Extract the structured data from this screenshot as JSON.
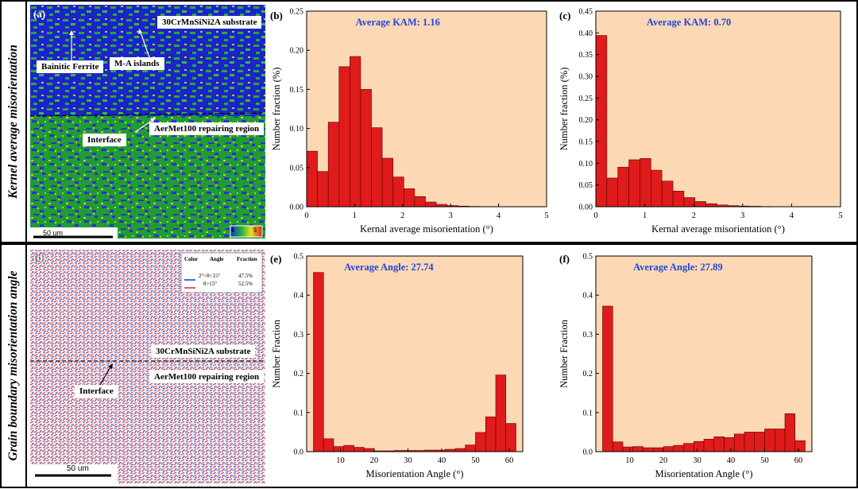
{
  "row_labels": {
    "top": "Kernel average misorientation",
    "bottom": "Grain boundary misorientation angle"
  },
  "panel_labels": {
    "a": "(a)",
    "b": "(b)",
    "c": "(c)",
    "d": "(d)",
    "e": "(e)",
    "f": "(f)"
  },
  "map_a": {
    "substrate": "30CrMnSiNi2A substrate",
    "bainitic": "Bainitic Ferrite",
    "ma": "M-A islands",
    "interface": "Interface",
    "repair": "AerMet100 repairing region",
    "scale": "50 um",
    "legend_min": "0",
    "legend_max": "5"
  },
  "map_d": {
    "legend_headers": [
      "Color",
      "Angle",
      "Fraction"
    ],
    "legend_rows": [
      {
        "angle": "2°<θ<15°",
        "fraction": "47.5%",
        "color": "#2233cc"
      },
      {
        "angle": "θ>15°",
        "fraction": "52.5%",
        "color": "#dd2222"
      }
    ],
    "substrate": "30CrMnSiNi2A substrate",
    "repair": "AerMet100 repairing region",
    "interface": "Interface",
    "scale": "50 um"
  },
  "colors": {
    "bar": "#e01b1b",
    "bar_edge": "#5a0000",
    "bg": "#fcd9b4",
    "annot": "#2244dd"
  },
  "chart_data": [
    {
      "id": "b",
      "type": "bar",
      "annotation": "Average KAM: 1.16",
      "xlabel": "Kernal average misorientation (°)",
      "ylabel": "Number fraction (%)",
      "xlim": [
        0,
        5
      ],
      "ylim": [
        0,
        0.25
      ],
      "xticks": [
        0,
        1,
        2,
        3,
        4,
        5
      ],
      "xtick_labels": [
        "0",
        "1",
        "2",
        "3",
        "4",
        "5"
      ],
      "yticks": [
        0,
        0.05,
        0.1,
        0.15,
        0.2,
        0.25
      ],
      "ytick_labels": [
        "0.00",
        "0.05",
        "0.10",
        "0.15",
        "0.20",
        "0.25"
      ],
      "bin_width": 0.225,
      "x": [
        0.1125,
        0.3375,
        0.5625,
        0.7875,
        1.0125,
        1.2375,
        1.4625,
        1.6875,
        1.9125,
        2.1375,
        2.3625,
        2.5875,
        2.8125,
        3.0375,
        3.2625,
        3.4875,
        3.7125,
        3.9375,
        4.1625,
        4.3875,
        4.6125,
        4.8375
      ],
      "values": [
        0.071,
        0.045,
        0.108,
        0.179,
        0.192,
        0.15,
        0.101,
        0.062,
        0.038,
        0.023,
        0.013,
        0.006,
        0.003,
        0.0015,
        0.0008,
        0.0004,
        0.0002,
        0.0001,
        0.0001,
        0,
        0,
        0
      ]
    },
    {
      "id": "c",
      "type": "bar",
      "annotation": "Average KAM: 0.70",
      "xlabel": "Kernal average misorientation (°)",
      "ylabel": "Number fraction (%)",
      "xlim": [
        0,
        5
      ],
      "ylim": [
        0,
        0.45
      ],
      "xticks": [
        0,
        1,
        2,
        3,
        4,
        5
      ],
      "xtick_labels": [
        "0",
        "1",
        "2",
        "3",
        "4",
        "5"
      ],
      "yticks": [
        0,
        0.05,
        0.1,
        0.15,
        0.2,
        0.25,
        0.3,
        0.35,
        0.4,
        0.45
      ],
      "ytick_labels": [
        "0.00",
        "0.05",
        "0.10",
        "0.15",
        "0.20",
        "0.25",
        "0.30",
        "0.35",
        "0.40",
        "0.45"
      ],
      "bin_width": 0.225,
      "x": [
        0.1125,
        0.3375,
        0.5625,
        0.7875,
        1.0125,
        1.2375,
        1.4625,
        1.6875,
        1.9125,
        2.1375,
        2.3625,
        2.5875,
        2.8125,
        3.0375,
        3.2625,
        3.4875,
        3.7125,
        3.9375,
        4.1625,
        4.3875,
        4.6125,
        4.8375
      ],
      "values": [
        0.394,
        0.066,
        0.091,
        0.108,
        0.111,
        0.084,
        0.059,
        0.036,
        0.021,
        0.012,
        0.007,
        0.004,
        0.0025,
        0.0015,
        0.001,
        0.0005,
        0.0003,
        0.0002,
        0.0001,
        0,
        0,
        0
      ]
    },
    {
      "id": "e",
      "type": "bar",
      "annotation": "Average Angle: 27.74",
      "xlabel": "Misorientation Angle (°)",
      "ylabel": "Number Fraction",
      "xlim": [
        0,
        64
      ],
      "ylim": [
        0,
        0.5
      ],
      "xticks": [
        10,
        20,
        30,
        40,
        50,
        60
      ],
      "xtick_labels": [
        "10",
        "20",
        "30",
        "40",
        "50",
        "60"
      ],
      "yticks": [
        0,
        0.1,
        0.2,
        0.3,
        0.4,
        0.5
      ],
      "ytick_labels": [
        "0.0",
        "0.1",
        "0.2",
        "0.3",
        "0.4",
        "0.5"
      ],
      "bin_width": 3,
      "x": [
        3.5,
        6.5,
        9.5,
        12.5,
        15.5,
        18.5,
        21.5,
        24.5,
        27.5,
        30.5,
        33.5,
        36.5,
        39.5,
        42.5,
        45.5,
        48.5,
        51.5,
        54.5,
        57.5,
        60.5
      ],
      "values": [
        0.458,
        0.033,
        0.013,
        0.016,
        0.011,
        0.008,
        0.002,
        0.002,
        0.003,
        0.003,
        0.003,
        0.004,
        0.004,
        0.006,
        0.008,
        0.017,
        0.049,
        0.089,
        0.196,
        0.072
      ]
    },
    {
      "id": "f",
      "type": "bar",
      "annotation": "Average Angle: 27.89",
      "xlabel": "Misorientation Angle (°)",
      "ylabel": "Number Fraction",
      "xlim": [
        0,
        64
      ],
      "ylim": [
        0,
        0.5
      ],
      "xticks": [
        10,
        20,
        30,
        40,
        50,
        60
      ],
      "xtick_labels": [
        "10",
        "20",
        "30",
        "40",
        "50",
        "60"
      ],
      "yticks": [
        0,
        0.1,
        0.2,
        0.3,
        0.4,
        0.5
      ],
      "ytick_labels": [
        "0.0",
        "0.1",
        "0.2",
        "0.3",
        "0.4",
        "0.5"
      ],
      "bin_width": 3,
      "x": [
        3.5,
        6.5,
        9.5,
        12.5,
        15.5,
        18.5,
        21.5,
        24.5,
        27.5,
        30.5,
        33.5,
        36.5,
        39.5,
        42.5,
        45.5,
        48.5,
        51.5,
        54.5,
        57.5,
        60.5
      ],
      "values": [
        0.372,
        0.025,
        0.012,
        0.013,
        0.01,
        0.01,
        0.013,
        0.016,
        0.021,
        0.026,
        0.032,
        0.038,
        0.036,
        0.045,
        0.05,
        0.05,
        0.058,
        0.058,
        0.097,
        0.028
      ]
    }
  ]
}
